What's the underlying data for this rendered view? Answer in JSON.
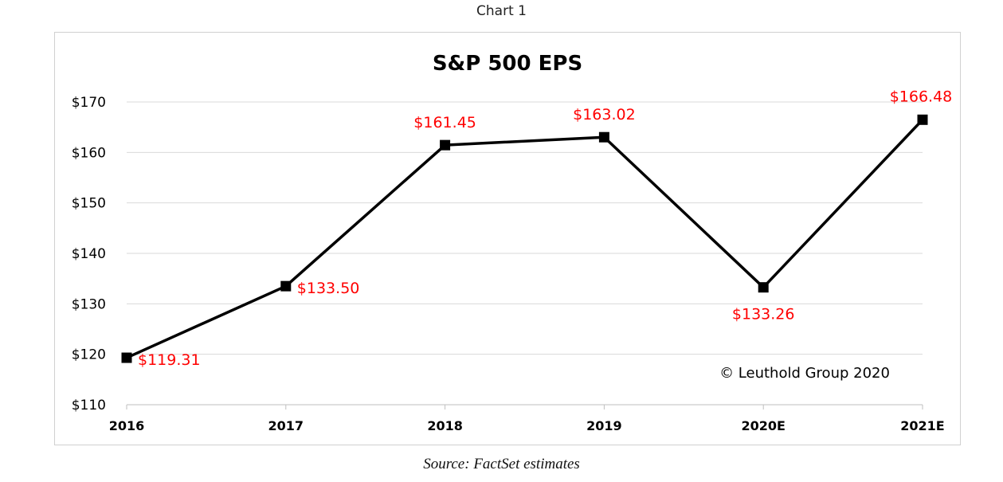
{
  "caption": "Chart 1",
  "source": "Source: FactSet estimates",
  "chart_data": {
    "type": "line",
    "title": "S&P 500 EPS",
    "categories": [
      "2016",
      "2017",
      "2018",
      "2019",
      "2020E",
      "2021E"
    ],
    "values": [
      119.31,
      133.5,
      161.45,
      163.02,
      133.26,
      166.48
    ],
    "data_labels": [
      "$119.31",
      "$133.50",
      "$161.45",
      "$163.02",
      "$133.26",
      "$166.48"
    ],
    "y_ticks": [
      110,
      120,
      130,
      140,
      150,
      160,
      170
    ],
    "y_tick_labels": [
      "$110",
      "$120",
      "$130",
      "$140",
      "$150",
      "$160",
      "$170"
    ],
    "ylim": [
      110,
      170
    ],
    "grid": true,
    "line_color": "#000000",
    "label_color": "#ff0000",
    "annotation": "© Leuthold Group 2020"
  }
}
